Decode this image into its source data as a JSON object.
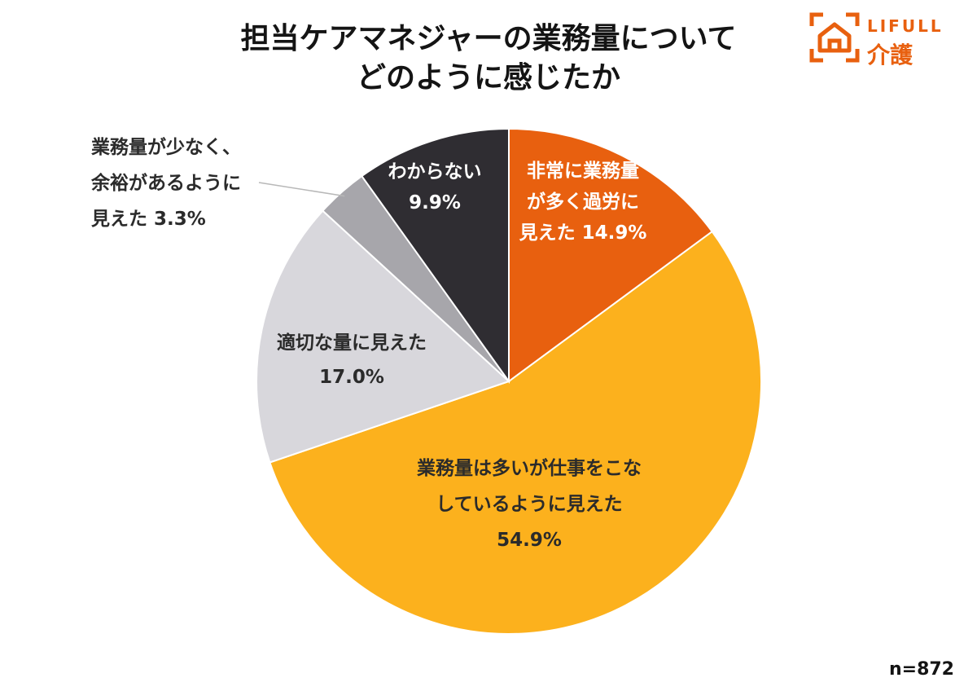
{
  "title": {
    "line1": "担当ケアマネジャーの業務量について",
    "line2": "どのように感じたか"
  },
  "brand": {
    "name": "LIFULL",
    "sub": "介護",
    "color": "#e8600f"
  },
  "sample_size": "n=872",
  "chart_data": {
    "type": "pie",
    "title": "担当ケアマネジャーの業務量についてどのように感じたか",
    "unit": "%",
    "start": "12 o'clock, clockwise",
    "slices": [
      {
        "label_lines": [
          "非常に業務量",
          "が多く過労に",
          "見えた 14.9%"
        ],
        "value": 14.9,
        "color": "#e8600f",
        "text_color": "#ffffff"
      },
      {
        "label_lines": [
          "業務量は多いが仕事をこな",
          "しているように見えた",
          "54.9%"
        ],
        "value": 54.9,
        "color": "#fcb11d",
        "text_color": "#2b2b2b"
      },
      {
        "label_lines": [
          "適切な量に見えた",
          "17.0%"
        ],
        "value": 17.0,
        "color": "#d8d7dc",
        "text_color": "#2b2b2b"
      },
      {
        "label_lines": [
          "業務量が少なく、",
          "余裕があるように",
          "見えた 3.3%"
        ],
        "value": 3.3,
        "color": "#a7a6ab",
        "text_color": "#2b2b2b",
        "label_outside": true
      },
      {
        "label_lines": [
          "わからない",
          "9.9%"
        ],
        "value": 9.9,
        "color": "#2f2d32",
        "text_color": "#ffffff"
      }
    ]
  }
}
